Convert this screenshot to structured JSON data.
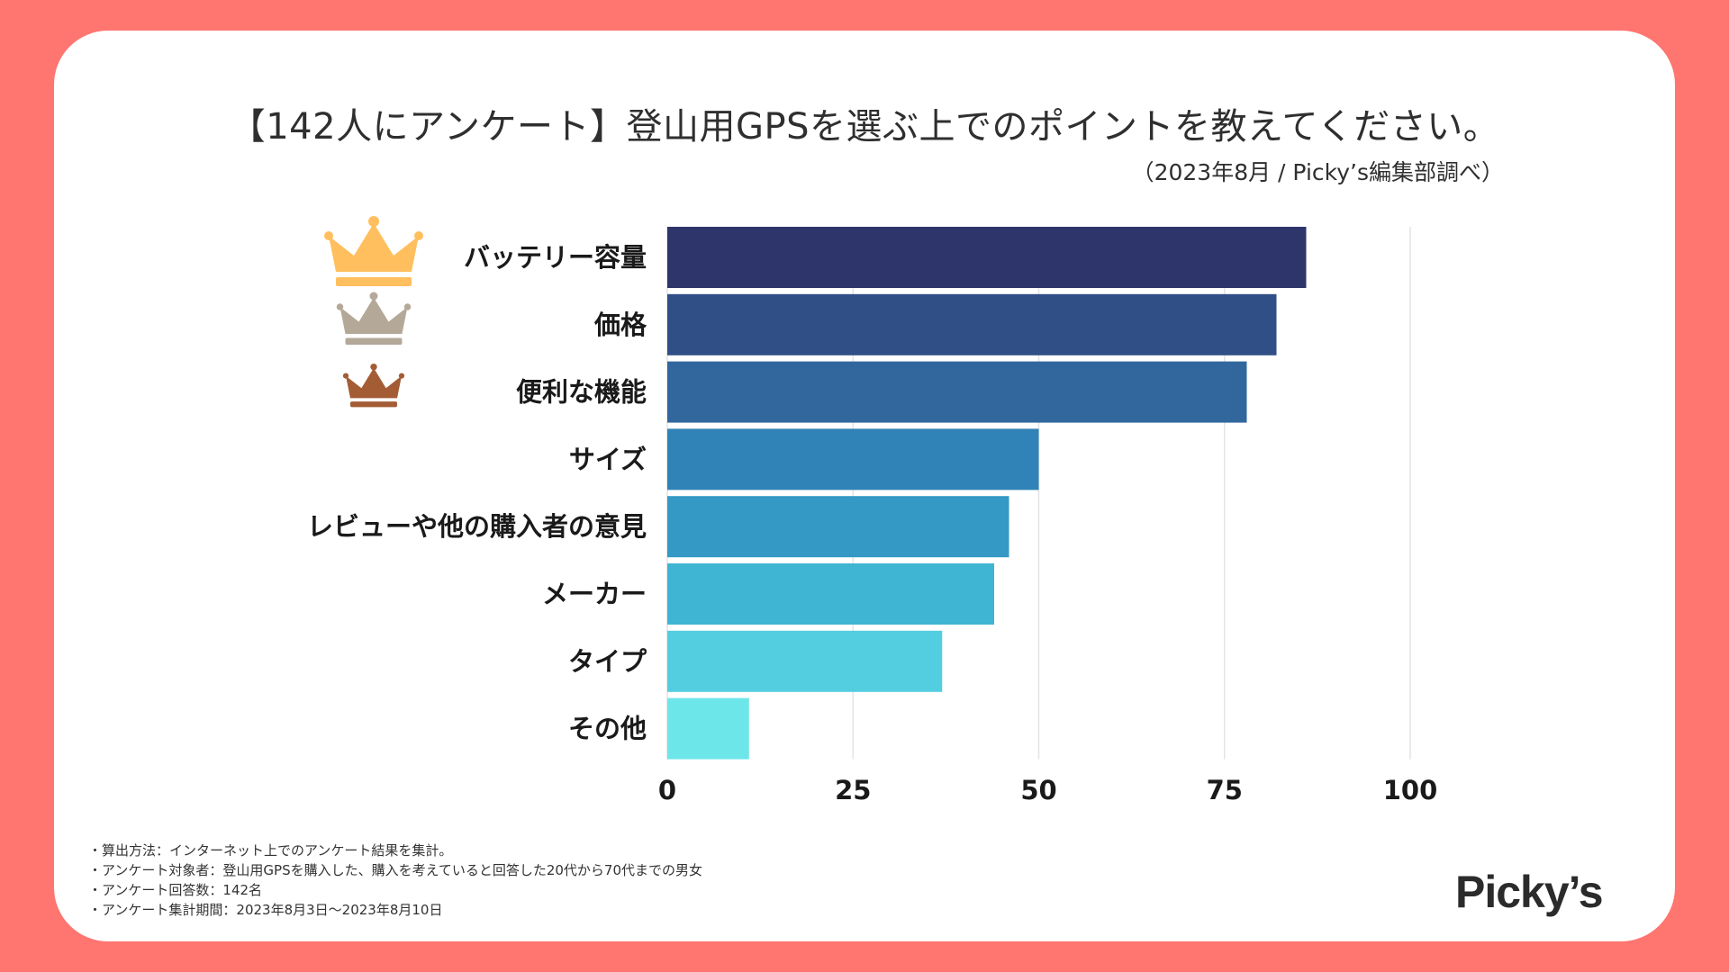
{
  "title": "【142人にアンケート】登山用GPSを選ぶ上でのポイントを教えてください。",
  "subtitle": "（2023年8月 / Picky’s編集部調べ）",
  "chart_data": {
    "type": "bar",
    "orientation": "horizontal",
    "categories": [
      "バッテリー容量",
      "価格",
      "便利な機能",
      "サイズ",
      "レビューや他の購入者の意見",
      "メーカー",
      "タイプ",
      "その他"
    ],
    "values": [
      86,
      82,
      78,
      50,
      46,
      44,
      37,
      11
    ],
    "bar_colors": [
      "#2e356a",
      "#304f87",
      "#32679d",
      "#2f83b6",
      "#3499c4",
      "#3fb4d3",
      "#53cde0",
      "#6de6ea"
    ],
    "xlim": [
      0,
      100
    ],
    "xticks": [
      "0",
      "25",
      "50",
      "75",
      "100"
    ],
    "grid": true,
    "rank_icons": [
      {
        "rank": 1,
        "name": "gold-crown-icon",
        "color": "#ffbf5e"
      },
      {
        "rank": 2,
        "name": "silver-crown-icon",
        "color": "#b4a999"
      },
      {
        "rank": 3,
        "name": "bronze-crown-icon",
        "color": "#a45c35"
      }
    ]
  },
  "notes": [
    "・算出方法：インターネット上でのアンケート結果を集計。",
    "・アンケート対象者：登山用GPSを購入した、購入を考えていると回答した20代から70代までの男女",
    "・アンケート回答数：142名",
    "・アンケート集計期間：2023年8月3日〜2023年8月10日"
  ],
  "logo": "Picky’s"
}
